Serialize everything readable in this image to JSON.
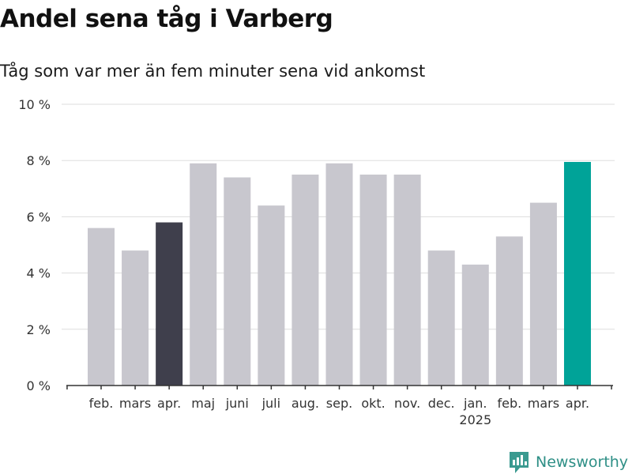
{
  "header": {
    "title": "Andel sena tåg i Varberg",
    "subtitle": "Tåg som var mer än fem minuter sena vid ankomst"
  },
  "brand": {
    "name": "Newsworthy",
    "icon": "newsworthy-logo-icon"
  },
  "colors": {
    "default_bar": "#c8c7ce",
    "previous_year_same_month": "#3f3f4c",
    "latest": "#00a398",
    "grid": "#dddddd",
    "axis": "#333333",
    "brand": "#2e8f86"
  },
  "chart_data": {
    "type": "bar",
    "categories": [
      "feb.",
      "mars",
      "apr.",
      "maj",
      "juni",
      "juli",
      "aug.",
      "sep.",
      "okt.",
      "nov.",
      "dec.",
      "jan.",
      "feb.",
      "mars",
      "apr."
    ],
    "year_labels": [
      {
        "index": 11,
        "label": "2025"
      }
    ],
    "values": [
      5.6,
      4.8,
      5.8,
      7.9,
      7.4,
      6.4,
      7.5,
      7.9,
      7.5,
      7.5,
      4.8,
      4.3,
      5.3,
      6.5,
      7.95
    ],
    "highlight": {
      "2": "previous_year_same_month",
      "14": "latest"
    },
    "ylim": [
      0,
      10
    ],
    "yticks": [
      0,
      2,
      4,
      6,
      8,
      10
    ],
    "ytick_labels": [
      "0 %",
      "2 %",
      "4 %",
      "6 %",
      "8 %",
      "10 %"
    ],
    "xlabel": "",
    "ylabel": "",
    "grid": true
  }
}
